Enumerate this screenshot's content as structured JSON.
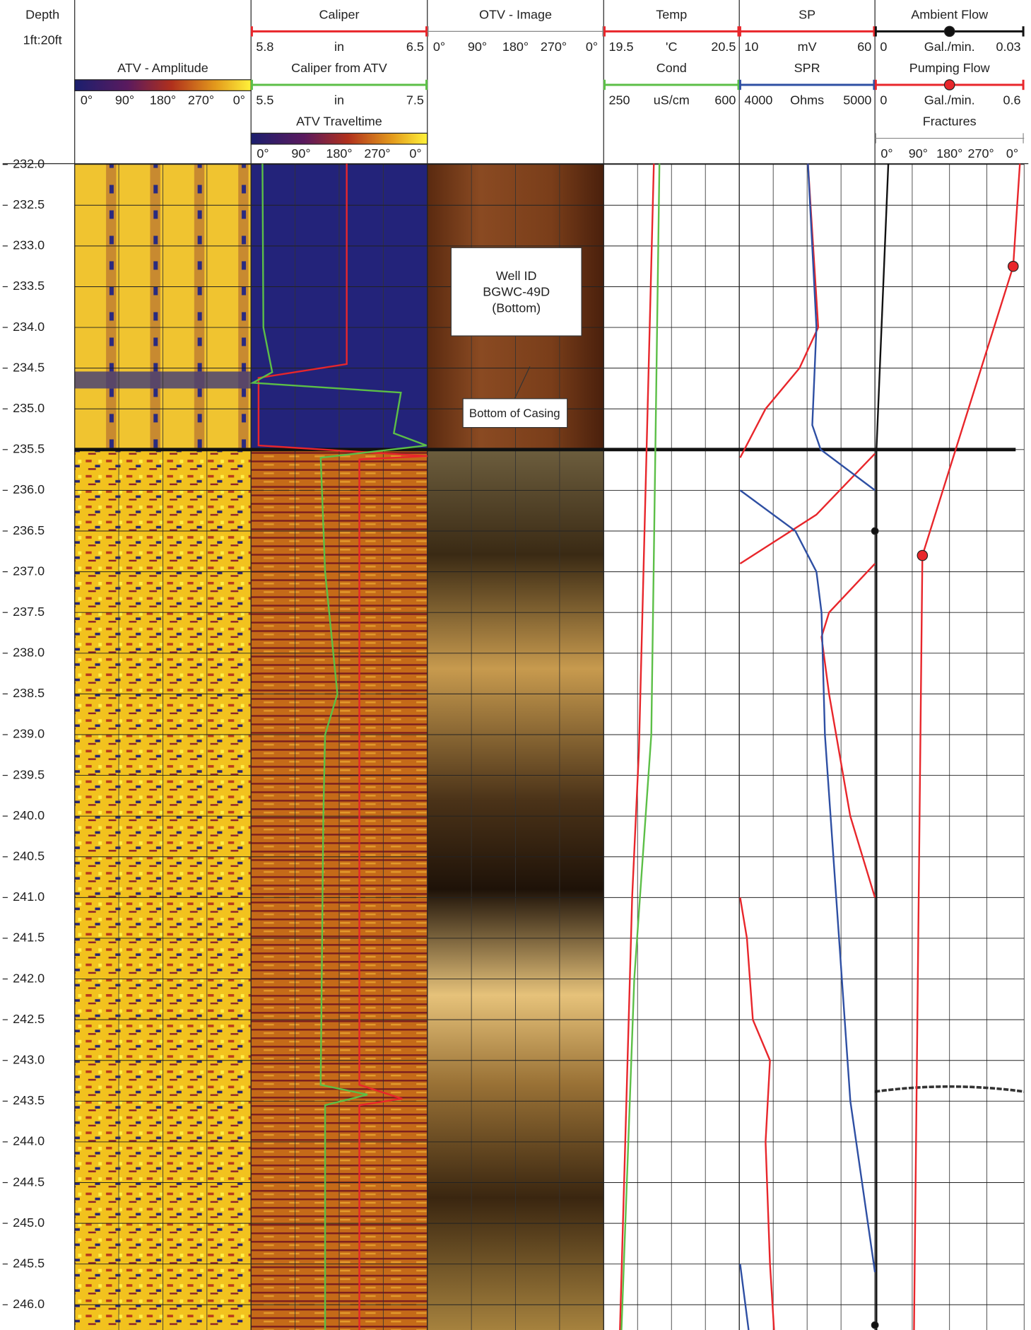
{
  "chart_data": {
    "type": "well-log",
    "depth_label": "Depth",
    "scale": "1ft:20ft",
    "ylim": [
      231.99,
      246.31
    ],
    "yticks": [
      {
        "value": 232,
        "label": "232.0"
      },
      {
        "value": 232.5,
        "label": "232.5"
      },
      {
        "value": 233,
        "label": "233.0"
      },
      {
        "value": 233.5,
        "label": "233.5"
      },
      {
        "value": 234,
        "label": "234.0"
      },
      {
        "value": 234.5,
        "label": "234.5"
      },
      {
        "value": 235,
        "label": "235.0"
      },
      {
        "value": 235.5,
        "label": "235.5"
      },
      {
        "value": 236,
        "label": "236.0"
      },
      {
        "value": 236.5,
        "label": "236.5"
      },
      {
        "value": 237,
        "label": "237.0"
      },
      {
        "value": 237.5,
        "label": "237.5"
      },
      {
        "value": 238,
        "label": "238.0"
      },
      {
        "value": 238.5,
        "label": "238.5"
      },
      {
        "value": 239,
        "label": "239.0"
      },
      {
        "value": 239.5,
        "label": "239.5"
      },
      {
        "value": 240,
        "label": "240.0"
      },
      {
        "value": 240.5,
        "label": "240.5"
      },
      {
        "value": 241,
        "label": "241.0"
      },
      {
        "value": 241.5,
        "label": "241.5"
      },
      {
        "value": 242,
        "label": "242.0"
      },
      {
        "value": 242.5,
        "label": "242.5"
      },
      {
        "value": 243,
        "label": "243.0"
      },
      {
        "value": 243.5,
        "label": "243.5"
      },
      {
        "value": 244,
        "label": "244.0"
      },
      {
        "value": 244.5,
        "label": "244.5"
      },
      {
        "value": 245,
        "label": "245.0"
      },
      {
        "value": 245.5,
        "label": "245.5"
      },
      {
        "value": 246,
        "label": "246.0"
      }
    ],
    "grid": true,
    "tracks": [
      {
        "title": "Caliper",
        "color": "#e8262b",
        "scale": [
          5.8,
          "in",
          6.5
        ],
        "curve": {
          "depth": [
            231.99,
            234.45,
            234.62,
            235.45,
            235.58,
            235.62,
            243.3,
            243.47,
            243.55,
            246.31
          ],
          "values": [
            6.18,
            6.18,
            5.83,
            5.83,
            6.5,
            6.23,
            6.23,
            6.4,
            6.23,
            6.23
          ]
        }
      },
      {
        "title": "OTV - Image",
        "color": "#888888",
        "scale": [
          "0°",
          "90°",
          "180°",
          "270°",
          "0°"
        ]
      },
      {
        "title": "Temp",
        "color": "#e8262b",
        "scale": [
          19.5,
          "'C",
          20.5
        ],
        "curve": {
          "depth": [
            231.99,
            239.2,
            241.0,
            246.31
          ],
          "values": [
            19.87,
            19.76,
            19.71,
            19.62
          ]
        }
      },
      {
        "title": "SP",
        "color": "#e8262b",
        "scale": [
          10,
          "mV",
          60
        ],
        "curve": {
          "depth": [
            231.99,
            234.0,
            234.5,
            235.0,
            235.6,
            235.6,
            235.55,
            236.3,
            236.9,
            236.9,
            236.9,
            237.5,
            237.8,
            238.5,
            240.0,
            241.0,
            241.0,
            241.0,
            241.5,
            242.5,
            243.0,
            244.0,
            245.5,
            246.31
          ],
          "values": [
            35.3,
            39.1,
            32.2,
            19.7,
            10.3,
            null,
            60,
            38.4,
            10.3,
            null,
            60,
            43.1,
            40.3,
            43.1,
            50.9,
            60,
            null,
            10.3,
            12.8,
            15,
            21.3,
            19.7,
            21.3,
            22.8
          ]
        }
      },
      {
        "title": "Ambient Flow",
        "color": "#111111",
        "scale": [
          0,
          "Gal./min.",
          0.03
        ],
        "curve": {
          "depth": [
            231.99,
            235.5,
            246.31
          ],
          "values": [
            0.0027,
            0.0003,
            0.0003
          ]
        },
        "points": {
          "depth": [
            236.5,
            246.25
          ],
          "values": [
            0,
            0
          ]
        }
      },
      {
        "title": "ATV - Amplitude",
        "scale": [
          "0°",
          "90°",
          "180°",
          "270°",
          "0°"
        ]
      },
      {
        "title": "Caliper from ATV",
        "color": "#5cbf47",
        "scale": [
          5.5,
          "in",
          7.5
        ],
        "curve": {
          "depth": [
            231.99,
            234.0,
            234.55,
            234.68,
            234.8,
            235.3,
            235.45,
            235.6,
            237.0,
            238.5,
            239.0,
            240.0,
            243.3,
            243.42,
            243.55,
            246.31
          ],
          "values": [
            5.63,
            5.64,
            5.74,
            5.52,
            7.2,
            7.12,
            7.49,
            6.29,
            6.34,
            6.48,
            6.34,
            6.32,
            6.29,
            6.82,
            6.34,
            6.34
          ]
        }
      },
      {
        "title": "Cond",
        "color": "#5cbf47",
        "scale": [
          250,
          "uS/cm",
          600
        ],
        "curve": {
          "depth": [
            231.99,
            239.0,
            242.0,
            246.31
          ],
          "values": [
            394,
            373,
            329,
            296
          ]
        }
      },
      {
        "title": "SPR",
        "color": "#2e4fa3",
        "scale": [
          4000,
          "Ohms",
          5000
        ],
        "curve": {
          "depth": [
            231.99,
            234.0,
            235.2,
            235.5,
            236.0,
            236.0,
            236.0,
            236.5,
            237.0,
            237.5,
            239.0,
            242.0,
            243.5,
            245.6,
            245.6,
            245.5,
            246.31
          ],
          "values": [
            4506,
            4569,
            4538,
            4600,
            5000,
            null,
            4006,
            4413,
            4569,
            4606,
            4631,
            4756,
            4819,
            5000,
            null,
            4006,
            4069
          ]
        }
      },
      {
        "title": "Pumping Flow",
        "color": "#e8262b",
        "scale": [
          0,
          "Gal./min.",
          0.6
        ],
        "curve": {
          "depth": [
            231.99,
            233.25,
            236.8,
            246.31
          ],
          "values": [
            0.583,
            0.556,
            0.191,
            0.157
          ]
        },
        "points": {
          "depth": [
            233.25,
            236.8
          ],
          "values": [
            0.556,
            0.191
          ]
        }
      },
      {
        "title": "ATV Traveltime",
        "scale": [
          "0°",
          "90°",
          "180°",
          "270°",
          "0°"
        ]
      },
      {
        "title": "Fractures",
        "color": "#888888",
        "scale": [
          "0°",
          "90°",
          "180°",
          "270°",
          "0°"
        ]
      }
    ],
    "annotations": {
      "well": [
        "Well ID",
        "BGWC-49D",
        "(Bottom)"
      ],
      "casing": "Bottom of Casing"
    }
  }
}
